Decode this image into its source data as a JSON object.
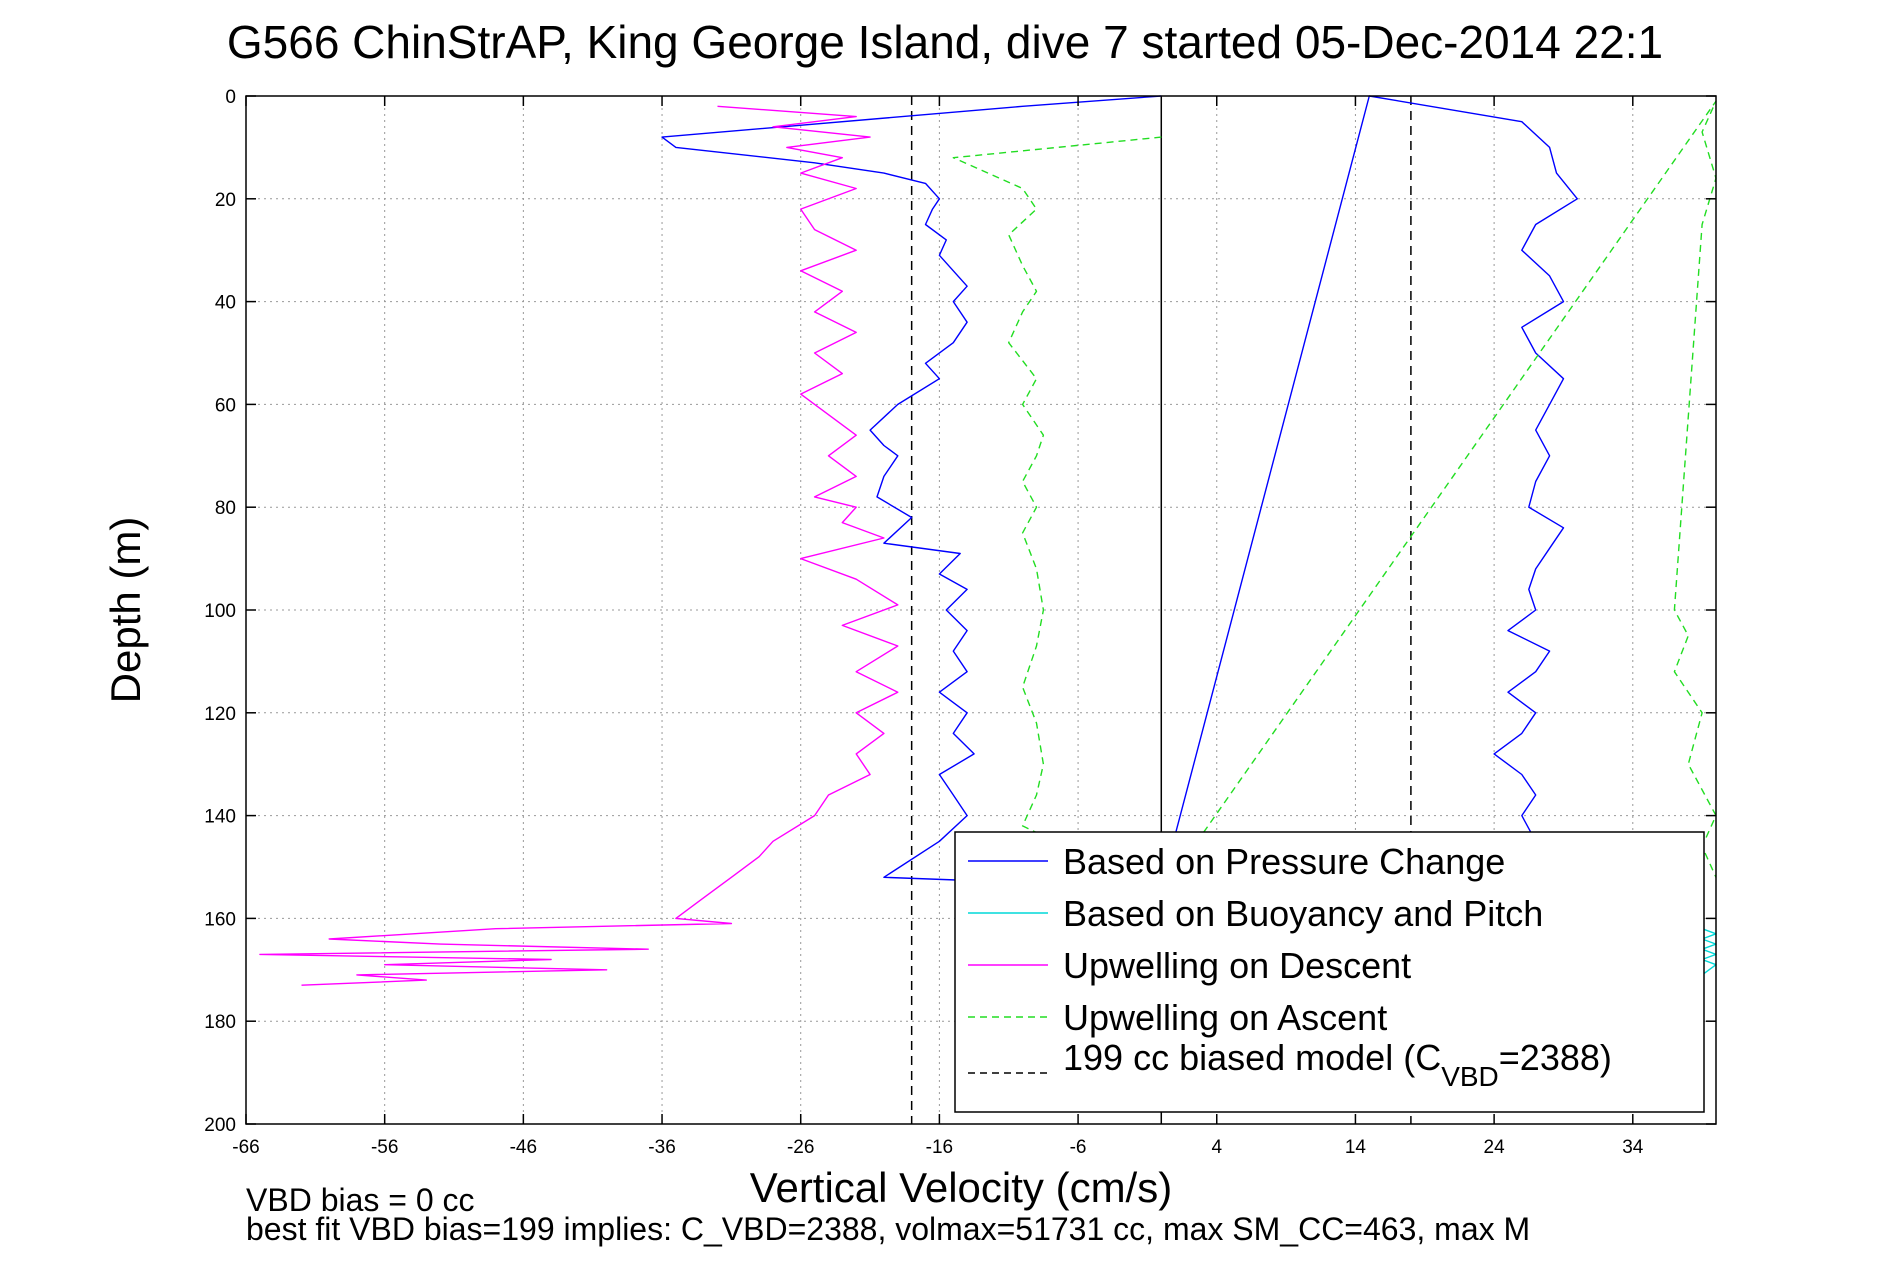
{
  "chart_data": {
    "type": "line",
    "title": "G566 ChinStrAP, King George Island, dive 7 started 05-Dec-2014 22:1",
    "xlabel": "Vertical Velocity (cm/s)",
    "ylabel": "Depth (m)",
    "xlim": [
      -66,
      40
    ],
    "ylim": [
      0,
      200
    ],
    "y_reversed": true,
    "x_ticks": [
      -66,
      -56,
      -46,
      -36,
      -26,
      -16,
      -6,
      4,
      14,
      24,
      34
    ],
    "y_ticks": [
      0,
      20,
      40,
      60,
      80,
      100,
      120,
      140,
      160,
      180,
      200
    ],
    "grid": true,
    "legend_position": "bottom-right",
    "reference_lines": [
      {
        "x": -18,
        "style": "dashed",
        "color": "#000000"
      },
      {
        "x": 0,
        "style": "solid",
        "color": "#000000"
      },
      {
        "x": 18,
        "style": "dashed",
        "color": "#000000"
      }
    ],
    "series": [
      {
        "name": "Based on Pressure Change",
        "color": "#0000ff",
        "style": "solid",
        "x": [
          0,
          -10,
          -36,
          -35,
          -25,
          -20,
          -17,
          -16,
          -16.5,
          -17,
          -15.5,
          -16,
          -15,
          -14,
          -15,
          -14,
          -15,
          -17,
          -16,
          -19,
          -21,
          -20,
          -19,
          -20,
          -20.5,
          -18,
          -20,
          -14.5,
          -16,
          -14,
          -15.5,
          -14,
          -15,
          -14,
          -16,
          -14,
          -15,
          -13.5,
          -16,
          -15,
          -14,
          -16,
          -20,
          0,
          15,
          26,
          28,
          28.5,
          30,
          27,
          26,
          28,
          29,
          26,
          27,
          29,
          28,
          27,
          28,
          27,
          26.5,
          29,
          28,
          27,
          26.5,
          27,
          25,
          28,
          27,
          25,
          27,
          26,
          24,
          26,
          27,
          26,
          27,
          26
        ],
        "y": [
          0,
          2,
          8,
          10,
          13,
          15,
          17,
          20,
          22,
          25,
          28,
          31,
          34,
          37,
          40,
          44,
          48,
          52,
          55,
          60,
          65,
          68,
          70,
          74,
          78,
          82,
          87,
          89,
          93,
          96,
          100,
          104,
          108,
          112,
          116,
          120,
          124,
          128,
          132,
          136,
          140,
          145,
          152,
          154,
          0,
          5,
          10,
          15,
          20,
          25,
          30,
          35,
          40,
          45,
          50,
          55,
          60,
          65,
          70,
          75,
          80,
          84,
          88,
          92,
          96,
          100,
          104,
          108,
          112,
          116,
          120,
          124,
          128,
          132,
          136,
          140,
          145,
          150
        ]
      },
      {
        "name": "Based on Buoyancy and Pitch",
        "color": "#00d8d8",
        "style": "solid",
        "x": [
          39,
          40,
          39,
          40,
          39,
          40,
          39,
          40,
          39
        ],
        "y": [
          162,
          163,
          164,
          165,
          166,
          167,
          168,
          169,
          171
        ]
      },
      {
        "name": "Upwelling on Descent",
        "color": "#ff00ff",
        "style": "solid",
        "x": [
          -32,
          -22,
          -28,
          -21,
          -27,
          -23,
          -26,
          -22,
          -26,
          -25,
          -22,
          -26,
          -23,
          -25,
          -22,
          -25,
          -23,
          -26,
          -24,
          -22,
          -24,
          -22,
          -25,
          -22,
          -23,
          -20,
          -26,
          -22,
          -19,
          -23,
          -19,
          -22,
          -19,
          -22,
          -20,
          -22,
          -21,
          -24,
          -25,
          -28,
          -29,
          -31,
          -33,
          -34,
          -35,
          -31,
          -48,
          -60,
          -52,
          -37,
          -65,
          -44,
          -56,
          -40,
          -58,
          -53,
          -62
        ],
        "y": [
          2,
          4,
          6,
          8,
          10,
          12,
          15,
          18,
          22,
          26,
          30,
          34,
          38,
          42,
          46,
          50,
          54,
          58,
          62,
          66,
          70,
          74,
          78,
          80,
          83,
          86,
          90,
          94,
          99,
          103,
          107,
          112,
          116,
          120,
          124,
          128,
          132,
          136,
          140,
          145,
          148,
          152,
          156,
          158,
          160,
          161,
          162,
          164,
          165,
          166,
          167,
          168,
          169,
          170,
          171,
          172,
          173
        ]
      },
      {
        "name": "Upwelling on Ascent",
        "color": "#22dd22",
        "style": "dashed",
        "x": [
          0,
          -15,
          -10,
          -9,
          -11,
          -10,
          -9,
          -10,
          -11,
          -9,
          -10,
          -8.5,
          -9,
          -10,
          -9,
          -10,
          -9,
          -8.5,
          -9,
          -10,
          -9,
          -8.5,
          -9,
          -10,
          0,
          40,
          39,
          40,
          39,
          37,
          38,
          37,
          39,
          38,
          40,
          39,
          40
        ],
        "y": [
          8,
          12,
          18,
          22,
          27,
          33,
          38,
          42,
          48,
          55,
          60,
          66,
          70,
          75,
          80,
          85,
          92,
          100,
          107,
          115,
          122,
          130,
          136,
          142,
          155,
          1,
          7,
          16,
          25,
          100,
          105,
          112,
          120,
          130,
          140,
          146,
          152
        ]
      }
    ],
    "model_legend": "199 cc biased model (C",
    "model_legend_sub": "VBD",
    "model_legend_tail": "=2388)",
    "notes": [
      "VBD bias = 0 cc",
      "best fit VBD bias=199 implies: C_VBD=2388, volmax=51731 cc, max SM_CC=463, max M"
    ]
  }
}
